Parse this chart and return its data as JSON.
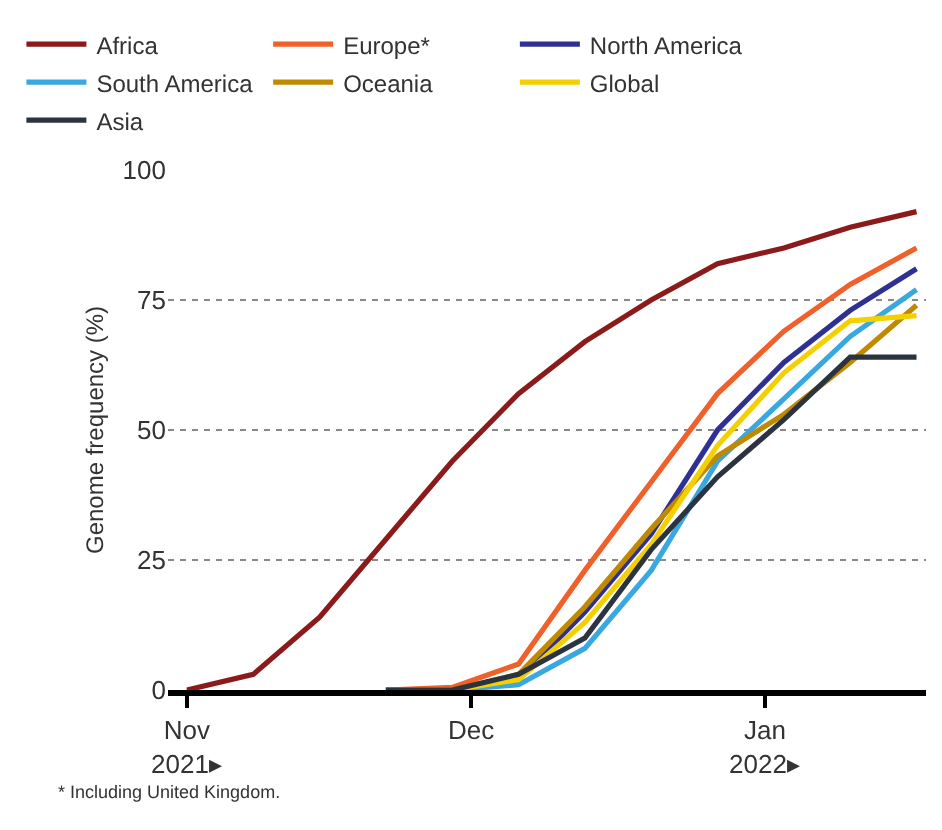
{
  "chart_data": {
    "type": "line",
    "ylabel": "Genome frequency (%)",
    "x": [
      "2021-11-01",
      "2021-11-08",
      "2021-11-15",
      "2021-11-22",
      "2021-11-29",
      "2021-12-06",
      "2021-12-13",
      "2021-12-20",
      "2021-12-27",
      "2022-01-03",
      "2022-01-10",
      "2022-01-17"
    ],
    "series": [
      {
        "name": "Africa",
        "color": "#8b1a1a",
        "values": [
          0,
          3,
          14,
          29,
          44,
          57,
          67,
          75,
          82,
          85,
          89,
          92
        ]
      },
      {
        "name": "Europe*",
        "color": "#f0602a",
        "values": [
          null,
          null,
          null,
          0,
          0.5,
          5,
          23,
          40,
          57,
          69,
          78,
          85
        ]
      },
      {
        "name": "North America",
        "color": "#2e3192",
        "values": [
          null,
          null,
          null,
          0,
          0,
          2,
          15,
          30,
          50,
          63,
          73,
          81
        ]
      },
      {
        "name": "South America",
        "color": "#3aa8e0",
        "values": [
          null,
          null,
          null,
          0,
          0,
          1,
          8,
          23,
          44,
          56,
          68,
          77
        ]
      },
      {
        "name": "Oceania",
        "color": "#c08a00",
        "values": [
          null,
          null,
          null,
          0,
          0,
          3,
          16,
          31,
          45,
          53,
          63,
          74
        ]
      },
      {
        "name": "Global",
        "color": "#f5d000",
        "values": [
          null,
          null,
          null,
          0,
          0,
          2,
          13,
          28,
          47,
          61,
          71,
          72
        ]
      },
      {
        "name": "Asia",
        "color": "#2b3340",
        "values": [
          null,
          null,
          null,
          0,
          0,
          3,
          10,
          27,
          41,
          52,
          64,
          64
        ]
      }
    ],
    "xlim": [
      "2021-10-30",
      "2022-01-18"
    ],
    "xticks": [
      {
        "value": "2021-11-01",
        "label": "Nov\n2021▸"
      },
      {
        "value": "2021-12-01",
        "label": "Dec"
      },
      {
        "value": "2022-01-01",
        "label": "Jan\n2022▸"
      }
    ],
    "ylim": [
      0,
      100
    ],
    "yticks": [
      0,
      25,
      50,
      75,
      100
    ],
    "grid": "y",
    "legend": "top",
    "marker": "none",
    "line_style": "solid",
    "annotations": [
      "* Including United Kingdom."
    ]
  }
}
